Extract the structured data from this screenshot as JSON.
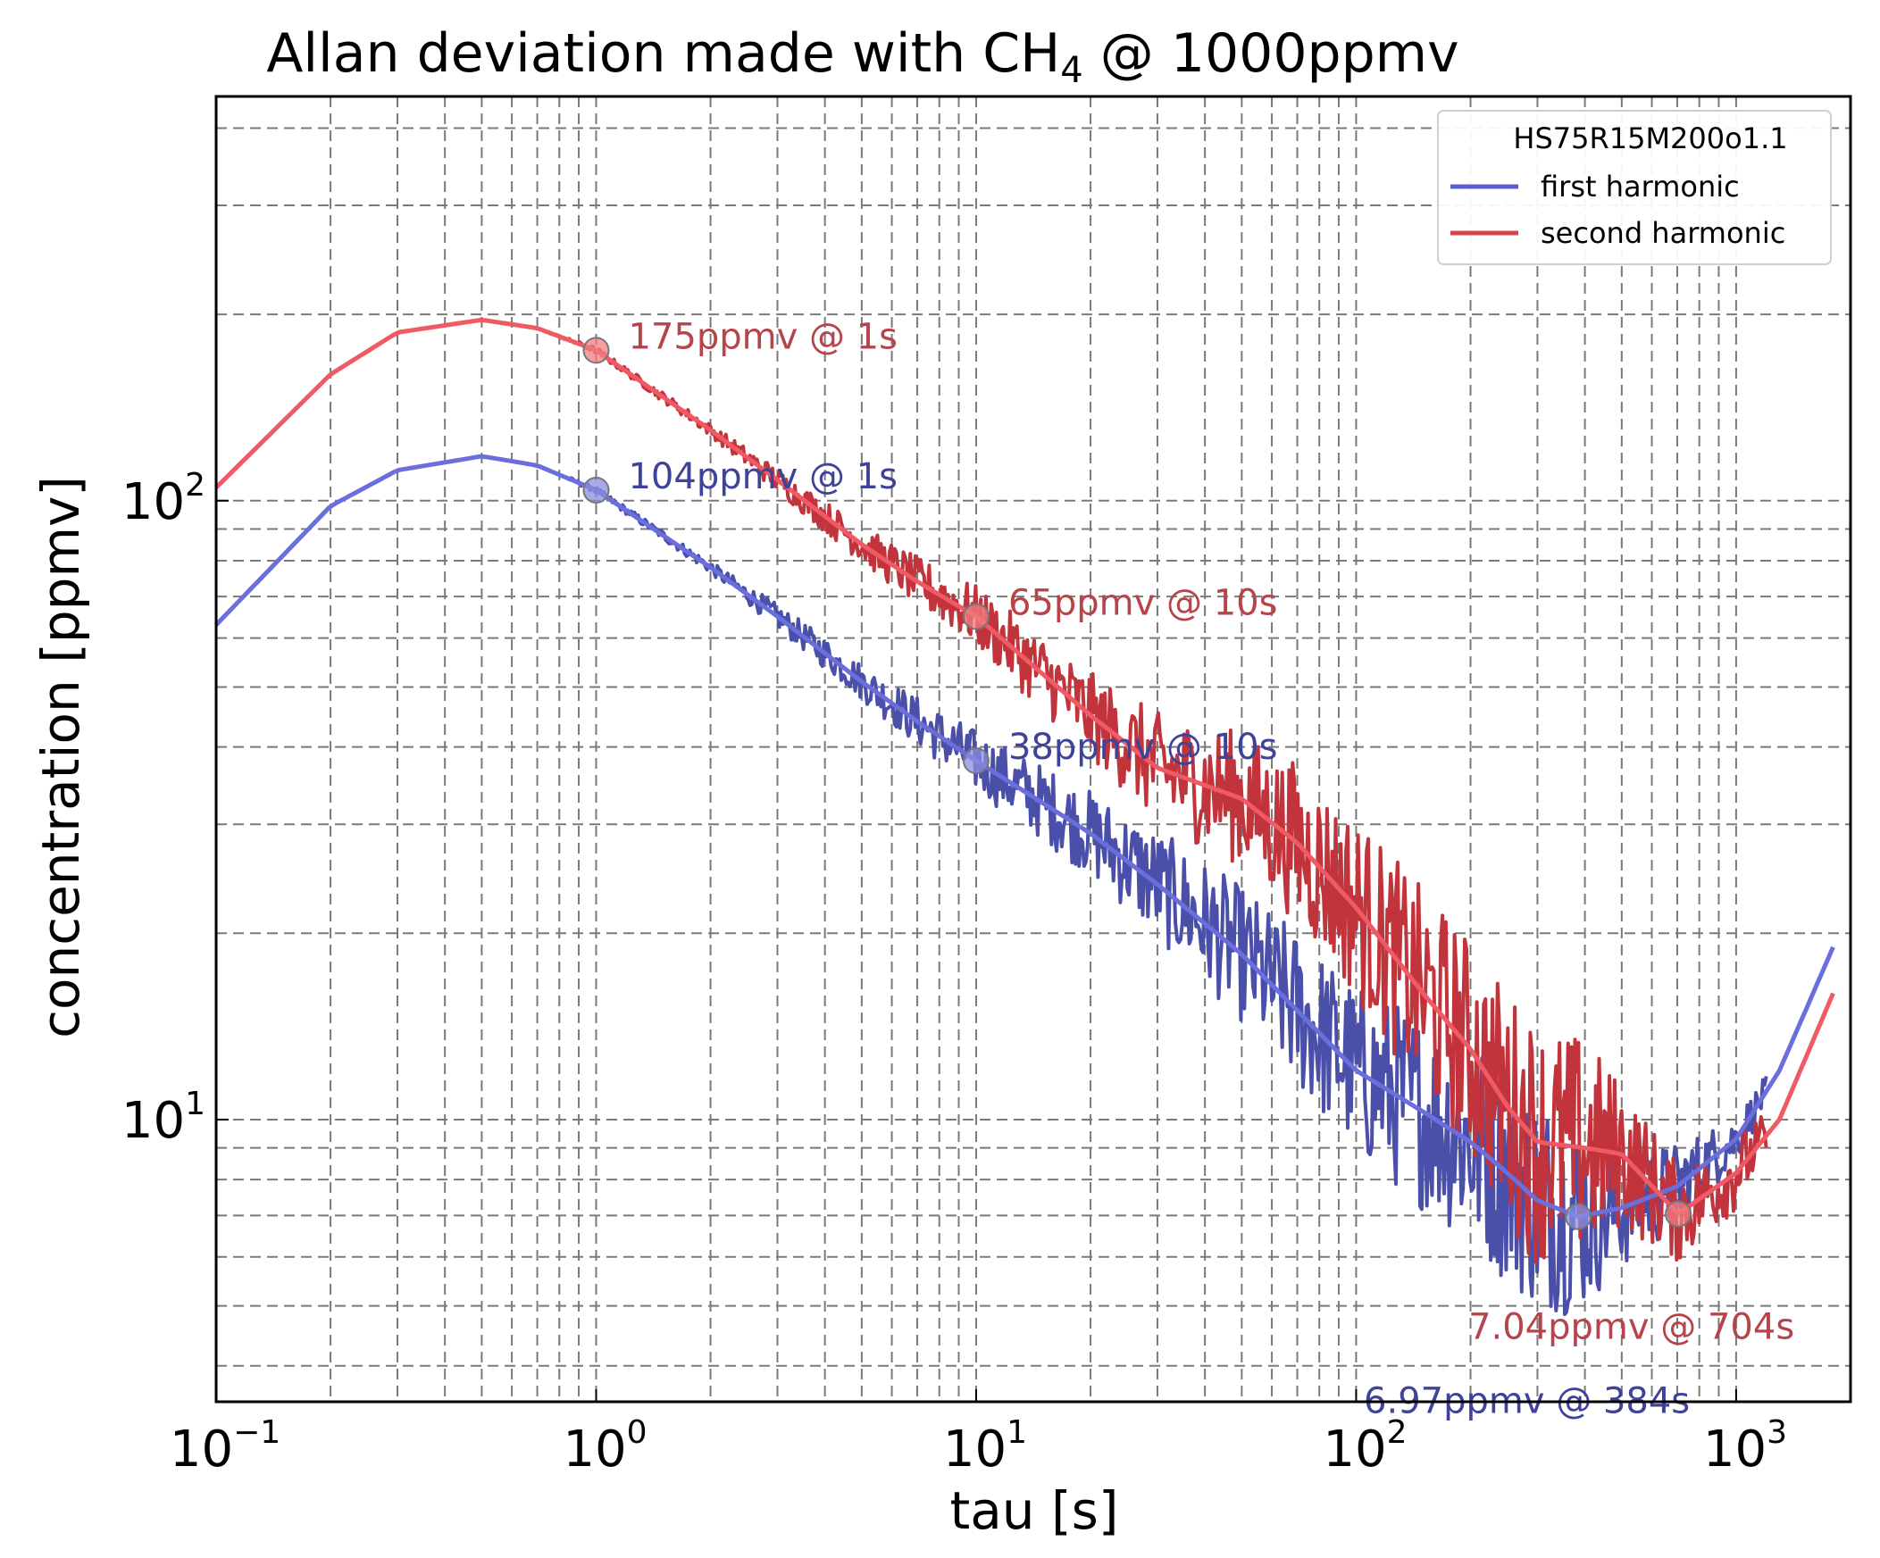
{
  "chart_data": {
    "type": "line",
    "title_main": "Allan deviation made with CH",
    "title_sub": "4",
    "title_rest": " @ 1000ppmv",
    "xlabel": "tau [s]",
    "ylabel": "concentration [ppmv]",
    "xscale": "log",
    "yscale": "log",
    "xlim": [
      0.1,
      2000
    ],
    "ylim": [
      3.5,
      450
    ],
    "grid": true,
    "x_ticks": [
      {
        "value": 0.1,
        "base": "10",
        "exp": "−1"
      },
      {
        "value": 1,
        "base": "10",
        "exp": "0"
      },
      {
        "value": 10,
        "base": "10",
        "exp": "1"
      },
      {
        "value": 100,
        "base": "10",
        "exp": "2"
      },
      {
        "value": 1000,
        "base": "10",
        "exp": "3"
      }
    ],
    "y_ticks": [
      {
        "value": 10,
        "base": "10",
        "exp": "1"
      },
      {
        "value": 100,
        "base": "10",
        "exp": "2"
      }
    ],
    "legend": {
      "title": "HS75R15M200o1.1",
      "position": "top-right",
      "entries": [
        {
          "label": "first harmonic",
          "color": "#5a5fcf"
        },
        {
          "label": "second harmonic",
          "color": "#d9444c"
        }
      ]
    },
    "series": [
      {
        "name": "first harmonic",
        "color": "#4a4faa",
        "smooth_color": "#6b6fdc",
        "x": [
          0.1,
          0.2,
          0.3,
          0.5,
          0.7,
          1,
          2,
          3,
          5,
          7,
          10,
          20,
          30,
          50,
          70,
          100,
          150,
          200,
          250,
          300,
          384,
          500,
          700,
          1000,
          1300,
          1800
        ],
        "y": [
          63,
          98,
          112,
          118,
          114,
          104,
          78,
          65,
          51,
          44,
          38,
          29,
          24,
          18.5,
          15,
          12,
          10.3,
          9.2,
          8.2,
          7.4,
          6.97,
          7.2,
          7.8,
          9.3,
          12,
          19
        ],
        "noise": [
          0,
          0,
          0,
          0,
          0,
          0.005,
          0.01,
          0.02,
          0.03,
          0.04,
          0.05,
          0.07,
          0.09,
          0.11,
          0.13,
          0.14,
          0.16,
          0.17,
          0.18,
          0.18,
          0.16,
          0.1,
          0.07,
          0.04,
          0.02,
          0
        ],
        "noisy_until": 1200
      },
      {
        "name": "second harmonic",
        "color": "#c2343c",
        "smooth_color": "#f05a64",
        "x": [
          0.1,
          0.2,
          0.3,
          0.5,
          0.7,
          1,
          2,
          3,
          5,
          7,
          10,
          20,
          30,
          50,
          70,
          100,
          150,
          200,
          250,
          300,
          400,
          500,
          704,
          1000,
          1300,
          1800
        ],
        "y": [
          105,
          160,
          187,
          196,
          190,
          175,
          130,
          108,
          85,
          74,
          65,
          45,
          37,
          33,
          28,
          22,
          16,
          13,
          10.5,
          9.2,
          9.0,
          8.8,
          7.04,
          8.2,
          10,
          16
        ],
        "noise": [
          0,
          0,
          0,
          0,
          0,
          0.005,
          0.01,
          0.02,
          0.03,
          0.04,
          0.05,
          0.07,
          0.09,
          0.11,
          0.13,
          0.15,
          0.17,
          0.18,
          0.19,
          0.2,
          0.18,
          0.12,
          0.08,
          0.06,
          0.03,
          0
        ],
        "noisy_until": 1200
      }
    ],
    "markers": [
      {
        "series": "second harmonic",
        "x": 1,
        "y": 175,
        "label": "175ppmv @ 1s",
        "color": "#f07d82",
        "text_color": "#b5454b",
        "dx": 36,
        "dy": -2
      },
      {
        "series": "first harmonic",
        "x": 1,
        "y": 104,
        "label": "104ppmv @ 1s",
        "color": "#8a8ee0",
        "text_color": "#3e4399",
        "dx": 36,
        "dy": -2
      },
      {
        "series": "second harmonic",
        "x": 10,
        "y": 65,
        "label": "65ppmv @ 10s",
        "color": "#f07d82",
        "text_color": "#b5454b",
        "dx": 36,
        "dy": -2
      },
      {
        "series": "first harmonic",
        "x": 10,
        "y": 38,
        "label": "38ppmv @ 10s",
        "color": "#8a8ee0",
        "text_color": "#3e4399",
        "dx": 36,
        "dy": -2
      },
      {
        "series": "second harmonic",
        "x": 704,
        "y": 7.04,
        "label": "7.04ppmv @ 704s",
        "color": "#f07d82",
        "text_color": "#b5454b",
        "dx": -235,
        "dy": 140
      },
      {
        "series": "first harmonic",
        "x": 384,
        "y": 6.97,
        "label": "6.97ppmv @ 384s",
        "color": "#8a8ee0",
        "text_color": "#3e4399",
        "dx": -240,
        "dy": 220
      }
    ]
  }
}
